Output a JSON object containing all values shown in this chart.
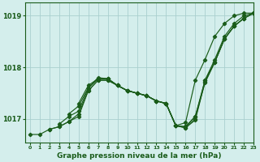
{
  "xlabel": "Graphe pression niveau de la mer (hPa)",
  "bg_color": "#d4eeec",
  "line_color": "#1a5c1a",
  "grid_color": "#aacfcf",
  "ylim": [
    1016.55,
    1019.25
  ],
  "xlim": [
    -0.5,
    23
  ],
  "yticks": [
    1017,
    1018,
    1019
  ],
  "xticks": [
    0,
    1,
    2,
    3,
    4,
    5,
    6,
    7,
    8,
    9,
    10,
    11,
    12,
    13,
    14,
    15,
    16,
    17,
    18,
    19,
    20,
    21,
    22,
    23
  ],
  "series": [
    {
      "x": [
        0,
        1,
        2,
        3,
        4,
        5,
        6,
        7,
        8,
        9,
        10,
        11,
        12,
        13,
        14,
        15,
        16,
        17,
        18,
        19,
        20,
        21,
        22,
        23
      ],
      "y": [
        1016.7,
        1016.7,
        1016.8,
        1016.85,
        1016.95,
        1017.05,
        1017.55,
        1017.75,
        1017.75,
        1017.65,
        1017.55,
        1017.5,
        1017.45,
        1017.35,
        1017.3,
        1016.87,
        1016.93,
        1017.75,
        1018.15,
        1018.6,
        1018.85,
        1019.0,
        1019.05,
        1019.05
      ]
    },
    {
      "x": [
        2,
        3,
        4,
        5,
        6,
        7,
        8,
        9,
        10,
        11,
        12,
        13,
        14,
        15,
        16,
        17,
        18,
        19,
        20,
        21,
        22,
        23
      ],
      "y": [
        1016.8,
        1016.85,
        1016.95,
        1017.1,
        1017.55,
        1017.75,
        1017.75,
        1017.65,
        1017.55,
        1017.5,
        1017.45,
        1017.35,
        1017.3,
        1016.87,
        1016.85,
        1017.05,
        1017.75,
        1018.15,
        1018.6,
        1018.85,
        1019.0,
        1019.05
      ]
    },
    {
      "x": [
        3,
        4,
        5,
        6,
        7,
        8,
        9,
        10,
        11,
        12,
        13,
        14,
        15,
        16,
        17,
        18,
        19,
        20,
        21,
        22,
        23
      ],
      "y": [
        1016.9,
        1017.05,
        1017.15,
        1017.6,
        1017.78,
        1017.78,
        1017.65,
        1017.55,
        1017.5,
        1017.45,
        1017.35,
        1017.3,
        1016.87,
        1016.85,
        1017.05,
        1017.7,
        1018.1,
        1018.55,
        1018.8,
        1018.95,
        1019.05
      ]
    },
    {
      "x": [
        4,
        5,
        6,
        7,
        8,
        9,
        10,
        11,
        12,
        13,
        14,
        15,
        16,
        17,
        18,
        19,
        20,
        21,
        22,
        23
      ],
      "y": [
        1017.1,
        1017.25,
        1017.6,
        1017.8,
        1017.78,
        1017.65,
        1017.55,
        1017.5,
        1017.45,
        1017.35,
        1017.3,
        1016.87,
        1016.83,
        1017.0,
        1017.75,
        1018.1,
        1018.55,
        1018.8,
        1018.95,
        1019.05
      ]
    },
    {
      "x": [
        5,
        6,
        7,
        8,
        9,
        10,
        11,
        12,
        13,
        14,
        15,
        16,
        17,
        18,
        19,
        20,
        21,
        22,
        23
      ],
      "y": [
        1017.3,
        1017.65,
        1017.78,
        1017.78,
        1017.65,
        1017.55,
        1017.5,
        1017.45,
        1017.35,
        1017.3,
        1016.87,
        1016.83,
        1016.98,
        1017.72,
        1018.1,
        1018.55,
        1018.8,
        1018.95,
        1019.05
      ]
    }
  ]
}
